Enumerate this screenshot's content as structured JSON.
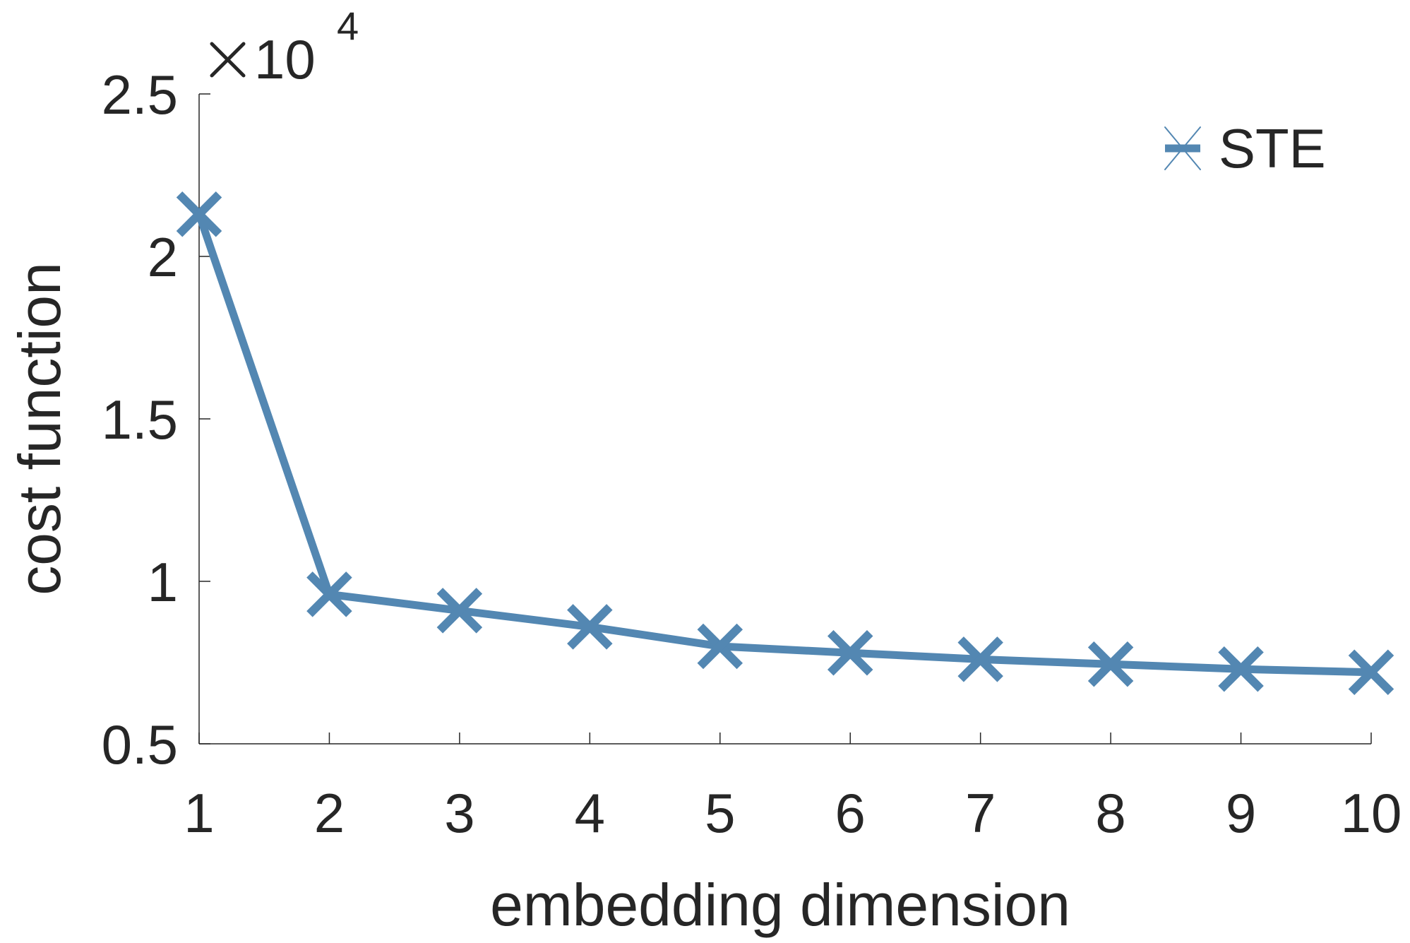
{
  "chart_data": {
    "type": "line",
    "title": "",
    "xlabel": "embedding dimension",
    "ylabel": "cost function",
    "x": [
      1,
      2,
      3,
      4,
      5,
      6,
      7,
      8,
      9,
      10
    ],
    "series": [
      {
        "name": "STE",
        "values": [
          21300,
          9600,
          9100,
          8600,
          8000,
          7800,
          7600,
          7450,
          7300,
          7200
        ],
        "color": "#5387b2",
        "marker": "x"
      }
    ],
    "xlim": [
      1,
      10
    ],
    "ylim": [
      5000,
      25000
    ],
    "xticks": [
      "1",
      "2",
      "3",
      "4",
      "5",
      "6",
      "7",
      "8",
      "9",
      "10"
    ],
    "yticks": [
      "0.5",
      "1",
      "1.5",
      "2",
      "2.5"
    ],
    "ytick_values": [
      5000,
      10000,
      15000,
      20000,
      25000
    ],
    "y_exponent_base": "10",
    "y_exponent_power": "4",
    "legend_position": "top-right",
    "grid": false
  }
}
